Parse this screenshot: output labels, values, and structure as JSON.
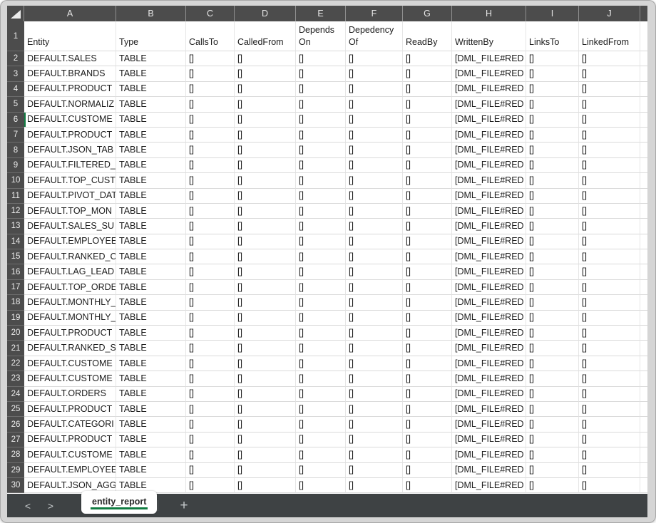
{
  "colors": {
    "accent_green": "#107c41",
    "grid_header_bg": "#4c4c4c",
    "tab_bar_bg": "#3e4244",
    "window_frame": "#d5d5d5"
  },
  "spreadsheet": {
    "column_letters": [
      "A",
      "B",
      "C",
      "D",
      "E",
      "F",
      "G",
      "H",
      "I",
      "J"
    ],
    "active_cell": {
      "row": 6,
      "col": 0
    },
    "rows": [
      {
        "num": 1,
        "cells": [
          "Entity",
          "Type",
          "CallsTo",
          "CalledFrom",
          "Depends On",
          "Depedency Of",
          "ReadBy",
          "WrittenBy",
          "LinksTo",
          "LinkedFrom"
        ]
      },
      {
        "num": 2,
        "cells": [
          "DEFAULT.SALES",
          "TABLE",
          "[]",
          "[]",
          "[]",
          "[]",
          "[]",
          "[DML_FILE#RED",
          "[]",
          "[]"
        ]
      },
      {
        "num": 3,
        "cells": [
          "DEFAULT.BRANDS",
          "TABLE",
          "[]",
          "[]",
          "[]",
          "[]",
          "[]",
          "[DML_FILE#RED",
          "[]",
          "[]"
        ]
      },
      {
        "num": 4,
        "cells": [
          "DEFAULT.PRODUCT",
          "TABLE",
          "[]",
          "[]",
          "[]",
          "[]",
          "[]",
          "[DML_FILE#RED",
          "[]",
          "[]"
        ]
      },
      {
        "num": 5,
        "cells": [
          "DEFAULT.NORMALIZ",
          "TABLE",
          "[]",
          "[]",
          "[]",
          "[]",
          "[]",
          "[DML_FILE#RED",
          "[]",
          "[]"
        ]
      },
      {
        "num": 6,
        "cells": [
          "DEFAULT.CUSTOME",
          "TABLE",
          "[]",
          "[]",
          "[]",
          "[]",
          "[]",
          "[DML_FILE#RED",
          "[]",
          "[]"
        ]
      },
      {
        "num": 7,
        "cells": [
          "DEFAULT.PRODUCT",
          "TABLE",
          "[]",
          "[]",
          "[]",
          "[]",
          "[]",
          "[DML_FILE#RED",
          "[]",
          "[]"
        ]
      },
      {
        "num": 8,
        "cells": [
          "DEFAULT.JSON_TAB",
          "TABLE",
          "[]",
          "[]",
          "[]",
          "[]",
          "[]",
          "[DML_FILE#RED",
          "[]",
          "[]"
        ]
      },
      {
        "num": 9,
        "cells": [
          "DEFAULT.FILTERED_",
          "TABLE",
          "[]",
          "[]",
          "[]",
          "[]",
          "[]",
          "[DML_FILE#RED",
          "[]",
          "[]"
        ]
      },
      {
        "num": 10,
        "cells": [
          "DEFAULT.TOP_CUST",
          "TABLE",
          "[]",
          "[]",
          "[]",
          "[]",
          "[]",
          "[DML_FILE#RED",
          "[]",
          "[]"
        ]
      },
      {
        "num": 11,
        "cells": [
          "DEFAULT.PIVOT_DAT",
          "TABLE",
          "[]",
          "[]",
          "[]",
          "[]",
          "[]",
          "[DML_FILE#RED",
          "[]",
          "[]"
        ]
      },
      {
        "num": 12,
        "cells": [
          "DEFAULT.TOP_MON",
          "TABLE",
          "[]",
          "[]",
          "[]",
          "[]",
          "[]",
          "[DML_FILE#RED",
          "[]",
          "[]"
        ]
      },
      {
        "num": 13,
        "cells": [
          "DEFAULT.SALES_SU",
          "TABLE",
          "[]",
          "[]",
          "[]",
          "[]",
          "[]",
          "[DML_FILE#RED",
          "[]",
          "[]"
        ]
      },
      {
        "num": 14,
        "cells": [
          "DEFAULT.EMPLOYEE",
          "TABLE",
          "[]",
          "[]",
          "[]",
          "[]",
          "[]",
          "[DML_FILE#RED",
          "[]",
          "[]"
        ]
      },
      {
        "num": 15,
        "cells": [
          "DEFAULT.RANKED_C",
          "TABLE",
          "[]",
          "[]",
          "[]",
          "[]",
          "[]",
          "[DML_FILE#RED",
          "[]",
          "[]"
        ]
      },
      {
        "num": 16,
        "cells": [
          "DEFAULT.LAG_LEAD",
          "TABLE",
          "[]",
          "[]",
          "[]",
          "[]",
          "[]",
          "[DML_FILE#RED",
          "[]",
          "[]"
        ]
      },
      {
        "num": 17,
        "cells": [
          "DEFAULT.TOP_ORDE",
          "TABLE",
          "[]",
          "[]",
          "[]",
          "[]",
          "[]",
          "[DML_FILE#RED",
          "[]",
          "[]"
        ]
      },
      {
        "num": 18,
        "cells": [
          "DEFAULT.MONTHLY_",
          "TABLE",
          "[]",
          "[]",
          "[]",
          "[]",
          "[]",
          "[DML_FILE#RED",
          "[]",
          "[]"
        ]
      },
      {
        "num": 19,
        "cells": [
          "DEFAULT.MONTHLY_",
          "TABLE",
          "[]",
          "[]",
          "[]",
          "[]",
          "[]",
          "[DML_FILE#RED",
          "[]",
          "[]"
        ]
      },
      {
        "num": 20,
        "cells": [
          "DEFAULT.PRODUCT",
          "TABLE",
          "[]",
          "[]",
          "[]",
          "[]",
          "[]",
          "[DML_FILE#RED",
          "[]",
          "[]"
        ]
      },
      {
        "num": 21,
        "cells": [
          "DEFAULT.RANKED_S",
          "TABLE",
          "[]",
          "[]",
          "[]",
          "[]",
          "[]",
          "[DML_FILE#RED",
          "[]",
          "[]"
        ]
      },
      {
        "num": 22,
        "cells": [
          "DEFAULT.CUSTOME",
          "TABLE",
          "[]",
          "[]",
          "[]",
          "[]",
          "[]",
          "[DML_FILE#RED",
          "[]",
          "[]"
        ]
      },
      {
        "num": 23,
        "cells": [
          "DEFAULT.CUSTOME",
          "TABLE",
          "[]",
          "[]",
          "[]",
          "[]",
          "[]",
          "[DML_FILE#RED",
          "[]",
          "[]"
        ]
      },
      {
        "num": 24,
        "cells": [
          "DEFAULT.ORDERS",
          "TABLE",
          "[]",
          "[]",
          "[]",
          "[]",
          "[]",
          "[DML_FILE#RED",
          "[]",
          "[]"
        ]
      },
      {
        "num": 25,
        "cells": [
          "DEFAULT.PRODUCT",
          "TABLE",
          "[]",
          "[]",
          "[]",
          "[]",
          "[]",
          "[DML_FILE#RED",
          "[]",
          "[]"
        ]
      },
      {
        "num": 26,
        "cells": [
          "DEFAULT.CATEGORI",
          "TABLE",
          "[]",
          "[]",
          "[]",
          "[]",
          "[]",
          "[DML_FILE#RED",
          "[]",
          "[]"
        ]
      },
      {
        "num": 27,
        "cells": [
          "DEFAULT.PRODUCT",
          "TABLE",
          "[]",
          "[]",
          "[]",
          "[]",
          "[]",
          "[DML_FILE#RED",
          "[]",
          "[]"
        ]
      },
      {
        "num": 28,
        "cells": [
          "DEFAULT.CUSTOME",
          "TABLE",
          "[]",
          "[]",
          "[]",
          "[]",
          "[]",
          "[DML_FILE#RED",
          "[]",
          "[]"
        ]
      },
      {
        "num": 29,
        "cells": [
          "DEFAULT.EMPLOYEE",
          "TABLE",
          "[]",
          "[]",
          "[]",
          "[]",
          "[]",
          "[DML_FILE#RED",
          "[]",
          "[]"
        ]
      },
      {
        "num": 30,
        "cells": [
          "DEFAULT.JSON_AGG",
          "TABLE",
          "[]",
          "[]",
          "[]",
          "[]",
          "[]",
          "[DML_FILE#RED",
          "[]",
          "[]"
        ]
      }
    ]
  },
  "tab_bar": {
    "prev_icon": "<",
    "next_icon": ">",
    "active_tab": "entity_report",
    "add_icon": "+"
  }
}
